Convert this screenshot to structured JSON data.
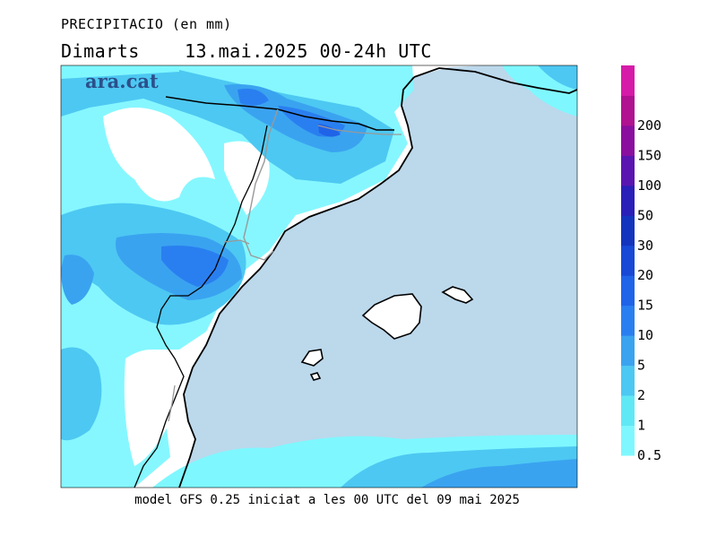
{
  "title": {
    "line1": "PRECIPITACIO (en mm)",
    "line2": "Dimarts    13.mai.2025 00-24h UTC"
  },
  "logo": "ara.cat",
  "footer": "model GFS 0.25 iniciat a les 00 UTC del 09 mai 2025",
  "legend": {
    "levels": [
      {
        "label": "0.5",
        "color": "#7ff7ff"
      },
      {
        "label": "1",
        "color": "#61e8f5"
      },
      {
        "label": "2",
        "color": "#4dc8f2"
      },
      {
        "label": "5",
        "color": "#3aa3f0"
      },
      {
        "label": "10",
        "color": "#2a7ff0"
      },
      {
        "label": "15",
        "color": "#1f63e8"
      },
      {
        "label": "20",
        "color": "#1749d6"
      },
      {
        "label": "30",
        "color": "#1434be"
      },
      {
        "label": "50",
        "color": "#2a1fb8"
      },
      {
        "label": "100",
        "color": "#5a15b0"
      },
      {
        "label": "150",
        "color": "#8a0f9e"
      },
      {
        "label": "200",
        "color": "#b01290"
      },
      {
        "label": "",
        "color": "#d61ba8"
      }
    ]
  },
  "colors": {
    "sea": "#bcd8eb",
    "land": "#ffffff",
    "coast": "#000000",
    "border": "#a0a0a0"
  }
}
